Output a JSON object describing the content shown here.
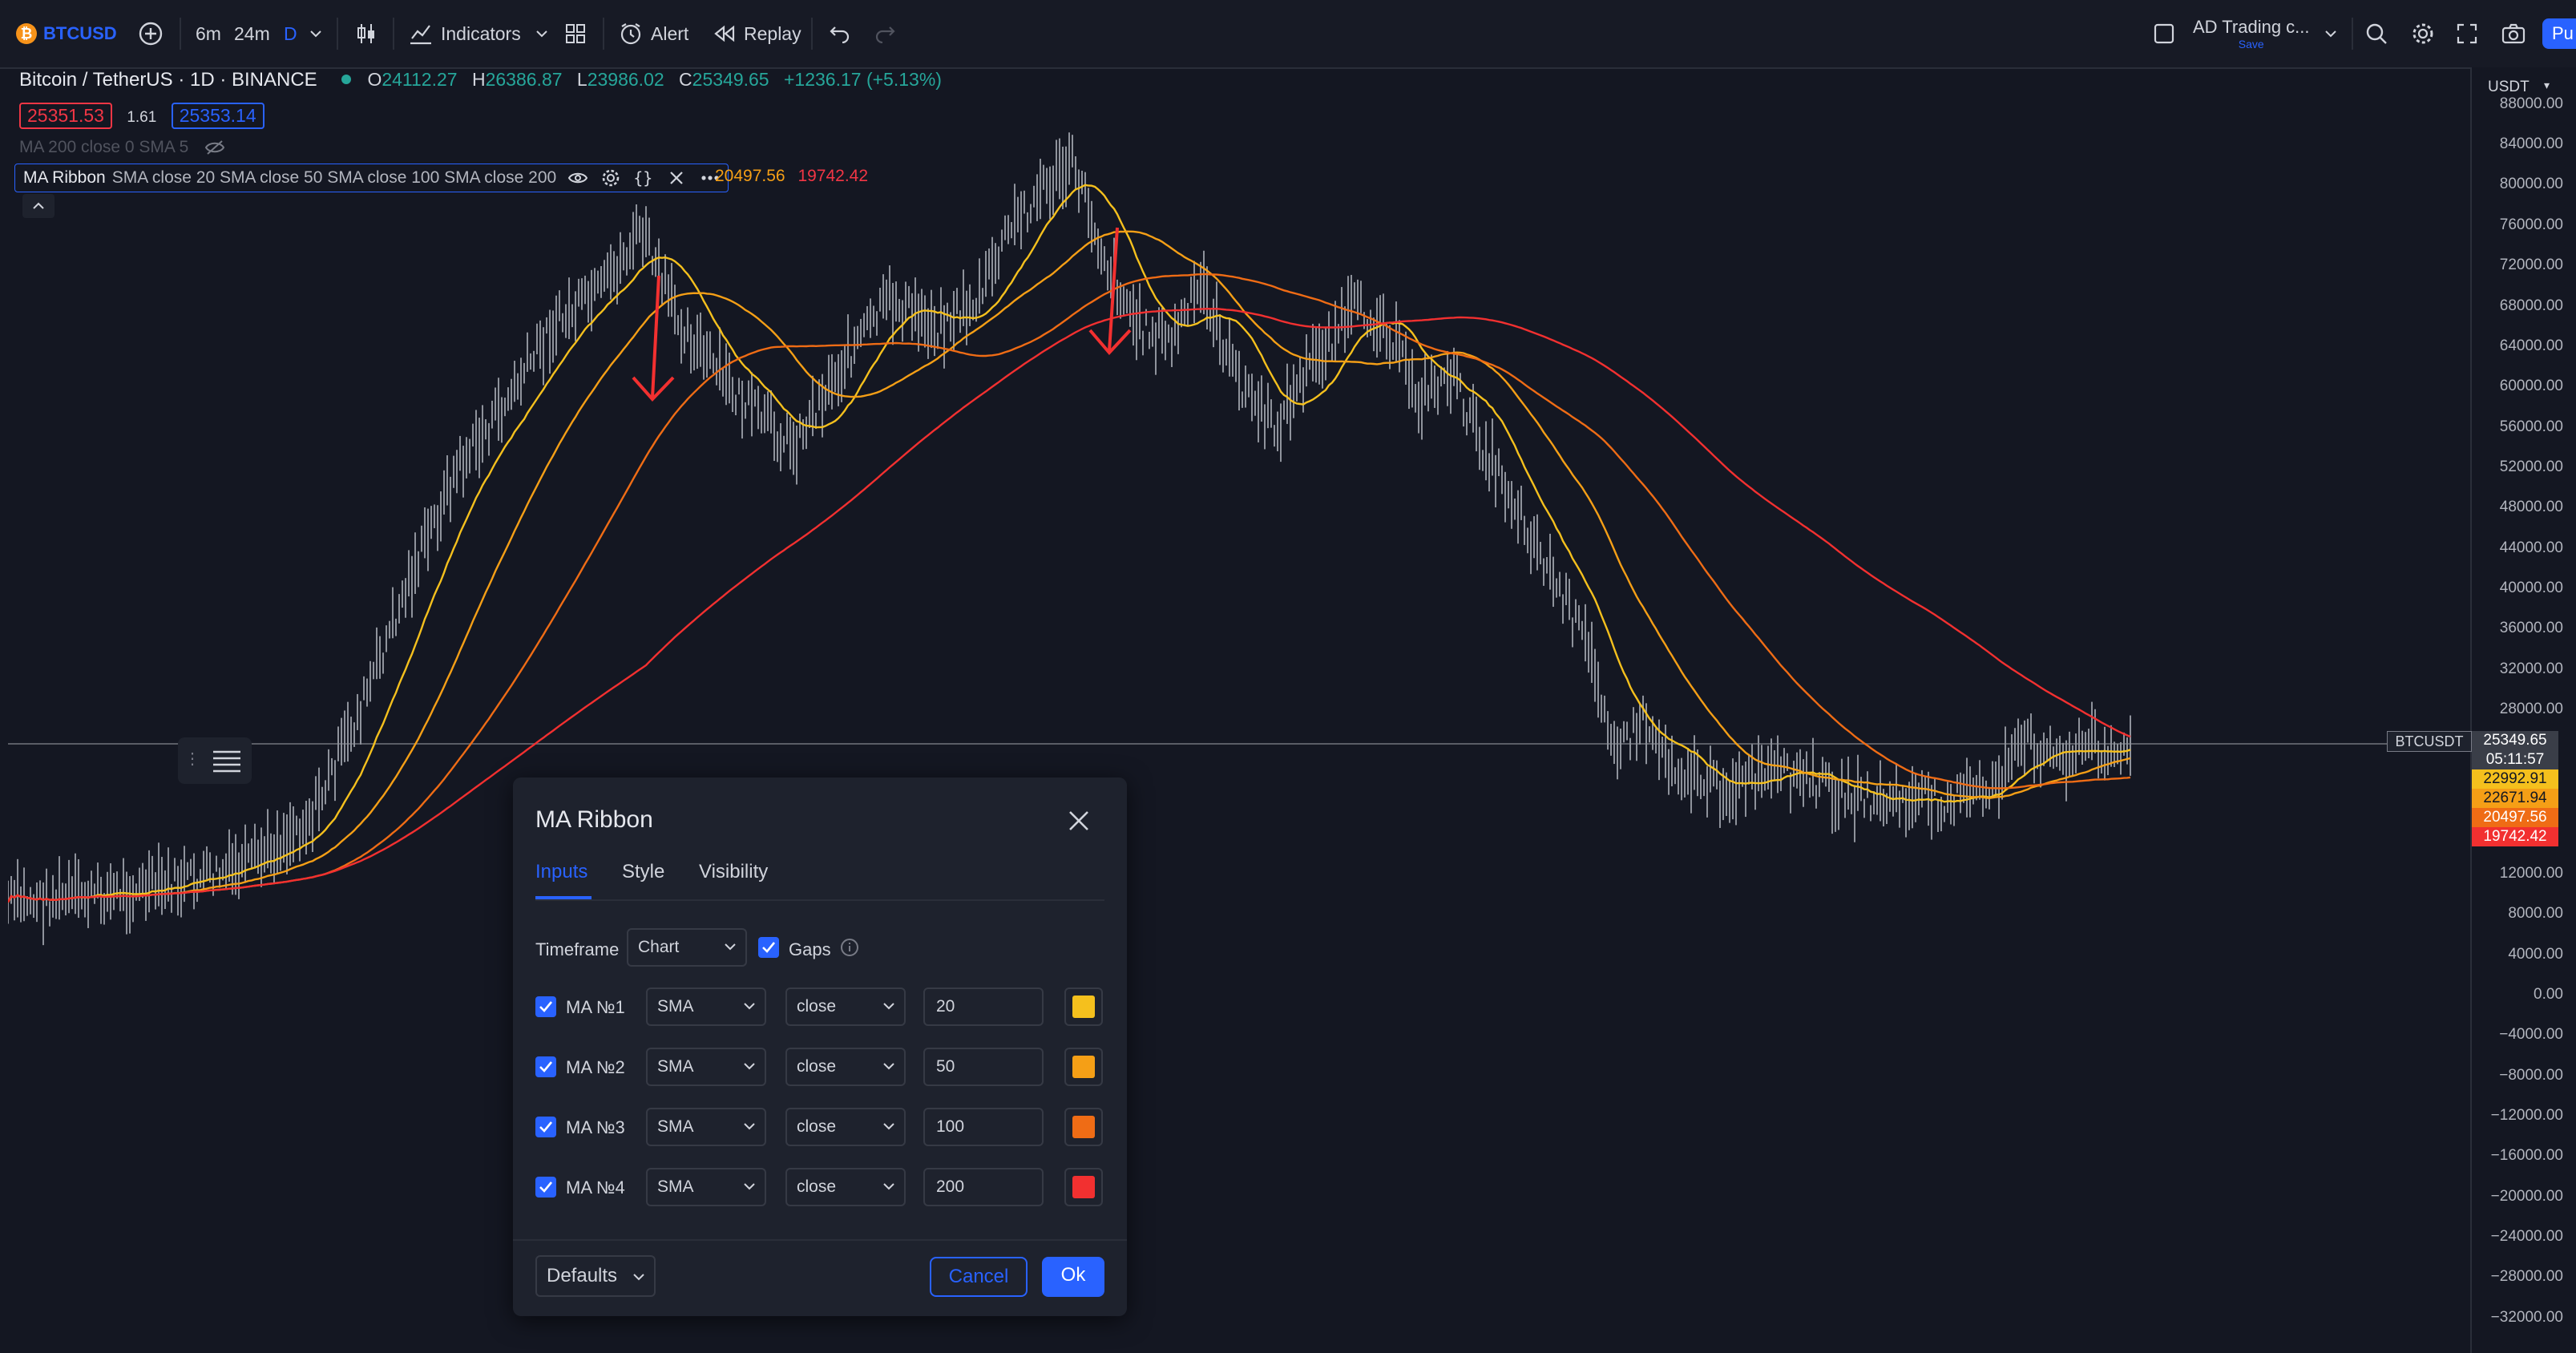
{
  "toolbar": {
    "symbol": "BTCUSD",
    "intervals": [
      "6m",
      "24m",
      "D"
    ],
    "indicators_label": "Indicators",
    "alert_label": "Alert",
    "replay_label": "Replay",
    "layout_name": "AD Trading c...",
    "layout_sub": "Save",
    "publish_label": "Pu"
  },
  "chart": {
    "title": "Bitcoin / TetherUS · 1D · BINANCE",
    "ohlc": {
      "o_label": "O",
      "o_value": "24112.27",
      "h_label": "H",
      "h_value": "26386.87",
      "l_label": "L",
      "l_value": "23986.02",
      "c_label": "C",
      "c_value": "25349.65",
      "change": "+1236.17 (+5.13%)"
    },
    "bid": "25351.53",
    "spread": "1.61",
    "ask": "25353.14",
    "indicator1": "MA 200 close 0 SMA 5",
    "indicator2_name": "MA Ribbon",
    "indicator2_params": "SMA close 20 SMA close 50 SMA close 100 SMA close 200",
    "indicator2_values": [
      "20497.56",
      "19742.42"
    ],
    "colors": {
      "up": "#26a69a",
      "ma1": "#f5c01d",
      "ma2": "#f59f16",
      "ma3": "#ef6c15",
      "ma4": "#f23030",
      "price_line": "#5a5d66"
    }
  },
  "axis": {
    "currency": "USDT",
    "ticks": [
      "88000.00",
      "84000.00",
      "80000.00",
      "76000.00",
      "72000.00",
      "68000.00",
      "64000.00",
      "60000.00",
      "56000.00",
      "52000.00",
      "48000.00",
      "44000.00",
      "40000.00",
      "36000.00",
      "32000.00",
      "28000.00",
      "12000.00",
      "8000.00",
      "4000.00",
      "0.00",
      "−4000.00",
      "−8000.00",
      "−12000.00",
      "−16000.00",
      "−20000.00",
      "−24000.00",
      "−28000.00",
      "−32000.00"
    ],
    "symbol_tag": "BTCUSDT",
    "price": "25349.65",
    "countdown": "05:11:57",
    "ma_values": [
      "22992.91",
      "22671.94",
      "20497.56",
      "19742.42"
    ]
  },
  "dialog": {
    "title": "MA Ribbon",
    "tabs": [
      "Inputs",
      "Style",
      "Visibility"
    ],
    "timeframe_label": "Timeframe",
    "timeframe_value": "Chart",
    "gaps_label": "Gaps",
    "rows": [
      {
        "label": "MA №1",
        "type": "SMA",
        "source": "close",
        "length": "20",
        "color": "#f5c01d"
      },
      {
        "label": "MA №2",
        "type": "SMA",
        "source": "close",
        "length": "50",
        "color": "#f59f16"
      },
      {
        "label": "MA №3",
        "type": "SMA",
        "source": "close",
        "length": "100",
        "color": "#ef6c15"
      },
      {
        "label": "MA №4",
        "type": "SMA",
        "source": "close",
        "length": "200",
        "color": "#f23030"
      }
    ],
    "defaults_label": "Defaults",
    "cancel_label": "Cancel",
    "ok_label": "Ok"
  }
}
